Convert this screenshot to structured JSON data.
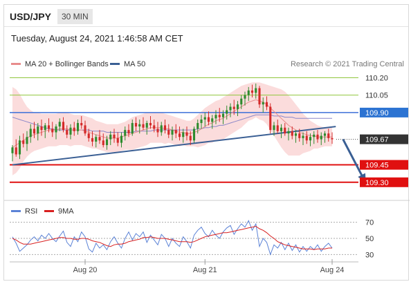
{
  "header": {
    "symbol": "USD/JPY",
    "period": "30 MIN",
    "datetime": "Tuesday, August 24, 2021 1:46:58 AM CET",
    "credit": "Research © 2021 Trading Central"
  },
  "colors": {
    "candle_up": "#2e8b2e",
    "candle_down": "#d42a2a",
    "bollinger_fill": "#fbd8d8",
    "ma20": "#e88c8c",
    "ma50": "#8a86c8",
    "trendline": "#3a5f94",
    "resistance_green": "#8fc63c",
    "resistance_blue": "#3b6fd8",
    "support_red": "#e01010",
    "last_price_bg": "#333333",
    "blue_label_bg": "#2c73d2",
    "red_label_bg": "#e01010",
    "rsi": "#5b82d6",
    "rsi_ma": "#d81f1f",
    "arrow": "#3a5f94"
  },
  "chart_data": [
    {
      "type": "candlestick",
      "title": "USD/JPY",
      "timeframe": "30 MIN",
      "legend": [
        {
          "name": "MA 20 + Bollinger Bands",
          "color": "#e88c8c"
        },
        {
          "name": "MA 50",
          "color": "#3a5f94"
        }
      ],
      "x_ticks": [
        "Aug 20",
        "Aug 21",
        "Aug 24"
      ],
      "x_tick_index": [
        20,
        53,
        88
      ],
      "ylim": [
        109.15,
        110.28
      ],
      "levels": [
        {
          "label": "110.20",
          "value": 110.2,
          "style": "green"
        },
        {
          "label": "110.05",
          "value": 110.05,
          "style": "green"
        },
        {
          "label": "109.90",
          "value": 109.9,
          "style": "blue"
        },
        {
          "label": "109.67",
          "value": 109.67,
          "style": "last"
        },
        {
          "label": "109.45",
          "value": 109.45,
          "style": "red"
        },
        {
          "label": "109.30",
          "value": 109.3,
          "style": "red"
        }
      ],
      "last_price": 109.67,
      "candles": [
        [
          109.55,
          109.62,
          109.48,
          109.6
        ],
        [
          109.6,
          109.67,
          109.52,
          109.54
        ],
        [
          109.54,
          109.7,
          109.5,
          109.66
        ],
        [
          109.66,
          109.72,
          109.6,
          109.63
        ],
        [
          109.63,
          109.74,
          109.57,
          109.69
        ],
        [
          109.69,
          109.8,
          109.64,
          109.76
        ],
        [
          109.76,
          109.82,
          109.68,
          109.72
        ],
        [
          109.72,
          109.81,
          109.66,
          109.78
        ],
        [
          109.78,
          109.84,
          109.7,
          109.75
        ],
        [
          109.75,
          109.81,
          109.68,
          109.79
        ],
        [
          109.79,
          109.85,
          109.73,
          109.76
        ],
        [
          109.76,
          109.82,
          109.69,
          109.73
        ],
        [
          109.73,
          109.8,
          109.67,
          109.78
        ],
        [
          109.78,
          109.85,
          109.74,
          109.82
        ],
        [
          109.82,
          109.86,
          109.73,
          109.75
        ],
        [
          109.75,
          109.79,
          109.68,
          109.71
        ],
        [
          109.71,
          109.8,
          109.67,
          109.77
        ],
        [
          109.77,
          109.82,
          109.7,
          109.74
        ],
        [
          109.74,
          109.84,
          109.71,
          109.81
        ],
        [
          109.81,
          109.87,
          109.76,
          109.79
        ],
        [
          109.79,
          109.83,
          109.7,
          109.72
        ],
        [
          109.72,
          109.76,
          109.65,
          109.68
        ],
        [
          109.68,
          109.74,
          109.61,
          109.65
        ],
        [
          109.65,
          109.71,
          109.6,
          109.69
        ],
        [
          109.69,
          109.75,
          109.63,
          109.66
        ],
        [
          109.66,
          109.72,
          109.6,
          109.62
        ],
        [
          109.62,
          109.7,
          109.58,
          109.67
        ],
        [
          109.67,
          109.74,
          109.62,
          109.71
        ],
        [
          109.71,
          109.76,
          109.64,
          109.68
        ],
        [
          109.68,
          109.73,
          109.61,
          109.64
        ],
        [
          109.64,
          109.73,
          109.6,
          109.7
        ],
        [
          109.7,
          109.78,
          109.66,
          109.75
        ],
        [
          109.75,
          109.8,
          109.69,
          109.72
        ],
        [
          109.72,
          109.84,
          109.7,
          109.81
        ],
        [
          109.81,
          109.86,
          109.74,
          109.78
        ],
        [
          109.78,
          109.84,
          109.72,
          109.8
        ],
        [
          109.8,
          109.86,
          109.75,
          109.77
        ],
        [
          109.77,
          109.83,
          109.71,
          109.81
        ],
        [
          109.81,
          109.87,
          109.76,
          109.79
        ],
        [
          109.79,
          109.84,
          109.73,
          109.76
        ],
        [
          109.76,
          109.82,
          109.69,
          109.73
        ],
        [
          109.73,
          109.82,
          109.7,
          109.79
        ],
        [
          109.79,
          109.84,
          109.72,
          109.75
        ],
        [
          109.75,
          109.8,
          109.68,
          109.71
        ],
        [
          109.71,
          109.78,
          109.66,
          109.75
        ],
        [
          109.75,
          109.8,
          109.68,
          109.72
        ],
        [
          109.72,
          109.78,
          109.66,
          109.69
        ],
        [
          109.69,
          109.76,
          109.64,
          109.73
        ],
        [
          109.73,
          109.78,
          109.66,
          109.7
        ],
        [
          109.7,
          109.74,
          109.62,
          109.66
        ],
        [
          109.66,
          109.78,
          109.64,
          109.76
        ],
        [
          109.76,
          109.84,
          109.72,
          109.81
        ],
        [
          109.81,
          109.88,
          109.76,
          109.84
        ],
        [
          109.84,
          109.9,
          109.78,
          109.86
        ],
        [
          109.86,
          109.91,
          109.79,
          109.82
        ],
        [
          109.82,
          109.88,
          109.76,
          109.85
        ],
        [
          109.85,
          109.92,
          109.8,
          109.88
        ],
        [
          109.88,
          109.94,
          109.82,
          109.86
        ],
        [
          109.86,
          109.92,
          109.8,
          109.89
        ],
        [
          109.89,
          109.96,
          109.84,
          109.92
        ],
        [
          109.92,
          109.98,
          109.86,
          109.95
        ],
        [
          109.95,
          110.01,
          109.88,
          109.93
        ],
        [
          109.93,
          110.0,
          109.87,
          109.97
        ],
        [
          109.97,
          110.05,
          109.93,
          110.02
        ],
        [
          110.02,
          110.08,
          109.96,
          110.05
        ],
        [
          110.05,
          110.12,
          110.0,
          110.09
        ],
        [
          110.09,
          110.14,
          110.03,
          110.07
        ],
        [
          110.07,
          110.15,
          110.02,
          110.11
        ],
        [
          110.11,
          110.13,
          109.94,
          109.97
        ],
        [
          109.97,
          110.03,
          109.9,
          109.99
        ],
        [
          109.99,
          110.04,
          109.92,
          109.95
        ],
        [
          109.95,
          109.98,
          109.72,
          109.75
        ],
        [
          109.75,
          109.82,
          109.7,
          109.79
        ],
        [
          109.79,
          109.84,
          109.72,
          109.74
        ],
        [
          109.74,
          109.8,
          109.68,
          109.77
        ],
        [
          109.77,
          109.81,
          109.7,
          109.72
        ],
        [
          109.72,
          109.77,
          109.66,
          109.74
        ],
        [
          109.74,
          109.78,
          109.67,
          109.7
        ],
        [
          109.7,
          109.75,
          109.64,
          109.72
        ],
        [
          109.72,
          109.76,
          109.65,
          109.68
        ],
        [
          109.68,
          109.73,
          109.62,
          109.7
        ],
        [
          109.7,
          109.74,
          109.63,
          109.66
        ],
        [
          109.66,
          109.72,
          109.61,
          109.69
        ],
        [
          109.69,
          109.74,
          109.63,
          109.71
        ],
        [
          109.71,
          109.75,
          109.64,
          109.67
        ],
        [
          109.67,
          109.73,
          109.62,
          109.7
        ],
        [
          109.7,
          109.74,
          109.64,
          109.72
        ],
        [
          109.72,
          109.76,
          109.65,
          109.68
        ],
        [
          109.68,
          109.73,
          109.63,
          109.67
        ]
      ],
      "ma20": [
        109.6,
        109.62,
        109.64,
        109.66,
        109.68,
        109.7,
        109.71,
        109.72,
        109.73,
        109.74,
        109.75,
        109.75,
        109.75,
        109.76,
        109.76,
        109.76,
        109.75,
        109.75,
        109.75,
        109.75,
        109.74,
        109.73,
        109.72,
        109.71,
        109.7,
        109.69,
        109.68,
        109.68,
        109.68,
        109.68,
        109.69,
        109.7,
        109.71,
        109.72,
        109.73,
        109.74,
        109.75,
        109.76,
        109.77,
        109.77,
        109.77,
        109.77,
        109.76,
        109.76,
        109.75,
        109.74,
        109.73,
        109.73,
        109.72,
        109.72,
        109.73,
        109.74,
        109.76,
        109.78,
        109.8,
        109.81,
        109.83,
        109.84,
        109.85,
        109.87,
        109.89,
        109.91,
        109.93,
        109.95,
        109.97,
        109.99,
        110.0,
        110.01,
        110.0,
        109.99,
        109.97,
        109.94,
        109.91,
        109.88,
        109.85,
        109.82,
        109.79,
        109.77,
        109.75,
        109.73,
        109.72,
        109.71,
        109.7,
        109.7,
        109.69,
        109.69,
        109.69,
        109.69,
        109.69
      ],
      "bb_upper": [
        110.12,
        110.1,
        110.06,
        110.0,
        109.95,
        109.92,
        109.9,
        109.9,
        109.89,
        109.89,
        109.89,
        109.89,
        109.89,
        109.9,
        109.9,
        109.9,
        109.89,
        109.88,
        109.88,
        109.88,
        109.87,
        109.86,
        109.85,
        109.83,
        109.82,
        109.81,
        109.8,
        109.8,
        109.8,
        109.8,
        109.81,
        109.82,
        109.84,
        109.86,
        109.87,
        109.88,
        109.89,
        109.9,
        109.9,
        109.9,
        109.9,
        109.9,
        109.89,
        109.88,
        109.87,
        109.86,
        109.85,
        109.84,
        109.83,
        109.83,
        109.85,
        109.88,
        109.91,
        109.94,
        109.96,
        109.98,
        110.0,
        110.01,
        110.03,
        110.05,
        110.07,
        110.09,
        110.11,
        110.13,
        110.14,
        110.15,
        110.16,
        110.16,
        110.16,
        110.15,
        110.14,
        110.13,
        110.12,
        110.11,
        110.1,
        110.08,
        110.05,
        110.01,
        109.97,
        109.93,
        109.89,
        109.86,
        109.83,
        109.81,
        109.79,
        109.78,
        109.77,
        109.77,
        109.77
      ],
      "bb_lower": [
        109.36,
        109.38,
        109.42,
        109.48,
        109.52,
        109.55,
        109.57,
        109.58,
        109.59,
        109.6,
        109.61,
        109.61,
        109.61,
        109.62,
        109.62,
        109.62,
        109.61,
        109.62,
        109.62,
        109.62,
        109.61,
        109.6,
        109.59,
        109.59,
        109.58,
        109.57,
        109.56,
        109.56,
        109.56,
        109.56,
        109.57,
        109.58,
        109.58,
        109.58,
        109.59,
        109.6,
        109.61,
        109.62,
        109.64,
        109.64,
        109.64,
        109.64,
        109.63,
        109.64,
        109.63,
        109.62,
        109.61,
        109.62,
        109.61,
        109.61,
        109.61,
        109.6,
        109.61,
        109.62,
        109.64,
        109.64,
        109.66,
        109.67,
        109.67,
        109.69,
        109.71,
        109.73,
        109.75,
        109.77,
        109.8,
        109.83,
        109.84,
        109.86,
        109.84,
        109.83,
        109.8,
        109.75,
        109.7,
        109.65,
        109.6,
        109.56,
        109.53,
        109.53,
        109.53,
        109.53,
        109.55,
        109.56,
        109.57,
        109.59,
        109.59,
        109.6,
        109.61,
        109.61,
        109.61
      ],
      "ma50": [
        109.86,
        109.85,
        109.84,
        109.83,
        109.82,
        109.81,
        109.8,
        109.79,
        109.78,
        109.77,
        109.76,
        109.76,
        109.75,
        109.75,
        109.75,
        109.75,
        109.75,
        109.75,
        109.75,
        109.75,
        109.75,
        109.75,
        109.74,
        109.74,
        109.74,
        109.74,
        109.73,
        109.73,
        109.73,
        109.73,
        109.73,
        109.73,
        109.73,
        109.73,
        109.74,
        109.74,
        109.74,
        109.74,
        109.74,
        109.75,
        109.75,
        109.75,
        109.75,
        109.75,
        109.75,
        109.75,
        109.75,
        109.75,
        109.75,
        109.75,
        109.75,
        109.76,
        109.76,
        109.77,
        109.77,
        109.78,
        109.78,
        109.79,
        109.79,
        109.8,
        109.81,
        109.82,
        109.83,
        109.84,
        109.85,
        109.86,
        109.87,
        109.88,
        109.88,
        109.88,
        109.88,
        109.88,
        109.87,
        109.87,
        109.87,
        109.86,
        109.86,
        109.86,
        109.85,
        109.85,
        109.85,
        109.85,
        109.85,
        109.85,
        109.85,
        109.85,
        109.85,
        109.85,
        109.85
      ],
      "trendline": [
        {
          "i": 0,
          "y": 109.45
        },
        {
          "i": 89,
          "y": 109.78
        }
      ],
      "forecast_arrow": [
        {
          "i": 91,
          "y": 109.67
        },
        {
          "i": 97,
          "y": 109.31
        }
      ]
    },
    {
      "type": "line",
      "title": "",
      "legend": [
        {
          "name": "RSI",
          "color": "#5b82d6"
        },
        {
          "name": "9MA",
          "color": "#d81f1f"
        }
      ],
      "ylim": [
        20,
        80
      ],
      "y_ticks": [
        70,
        50,
        30
      ],
      "series": [
        {
          "name": "RSI",
          "values": [
            52,
            44,
            34,
            38,
            42,
            48,
            52,
            47,
            54,
            50,
            56,
            50,
            46,
            53,
            59,
            45,
            40,
            52,
            46,
            58,
            52,
            37,
            33,
            44,
            38,
            42,
            36,
            46,
            52,
            44,
            38,
            50,
            58,
            48,
            56,
            52,
            58,
            45,
            54,
            48,
            42,
            55,
            50,
            40,
            50,
            44,
            40,
            52,
            46,
            38,
            54,
            60,
            64,
            56,
            52,
            60,
            54,
            50,
            58,
            63,
            66,
            55,
            62,
            68,
            64,
            72,
            60,
            68,
            40,
            50,
            45,
            30,
            42,
            38,
            45,
            36,
            44,
            35,
            42,
            33,
            40,
            34,
            40,
            36,
            42,
            34,
            40,
            44,
            38
          ]
        },
        {
          "name": "9MA",
          "values": [
            50,
            48,
            45,
            43,
            43,
            43,
            44,
            45,
            46,
            47,
            48,
            49,
            50,
            51,
            51,
            50,
            50,
            49,
            49,
            50,
            50,
            49,
            47,
            46,
            45,
            43,
            41,
            40,
            42,
            43,
            43,
            44,
            46,
            47,
            48,
            49,
            51,
            51,
            52,
            51,
            50,
            50,
            50,
            49,
            48,
            47,
            46,
            46,
            46,
            45,
            46,
            48,
            50,
            52,
            53,
            54,
            55,
            56,
            57,
            57,
            58,
            59,
            60,
            61,
            62,
            63,
            64,
            65,
            62,
            60,
            57,
            53,
            50,
            46,
            44,
            42,
            41,
            40,
            39,
            38,
            37,
            37,
            37,
            36,
            37,
            37,
            37,
            38,
            38
          ]
        }
      ]
    }
  ]
}
